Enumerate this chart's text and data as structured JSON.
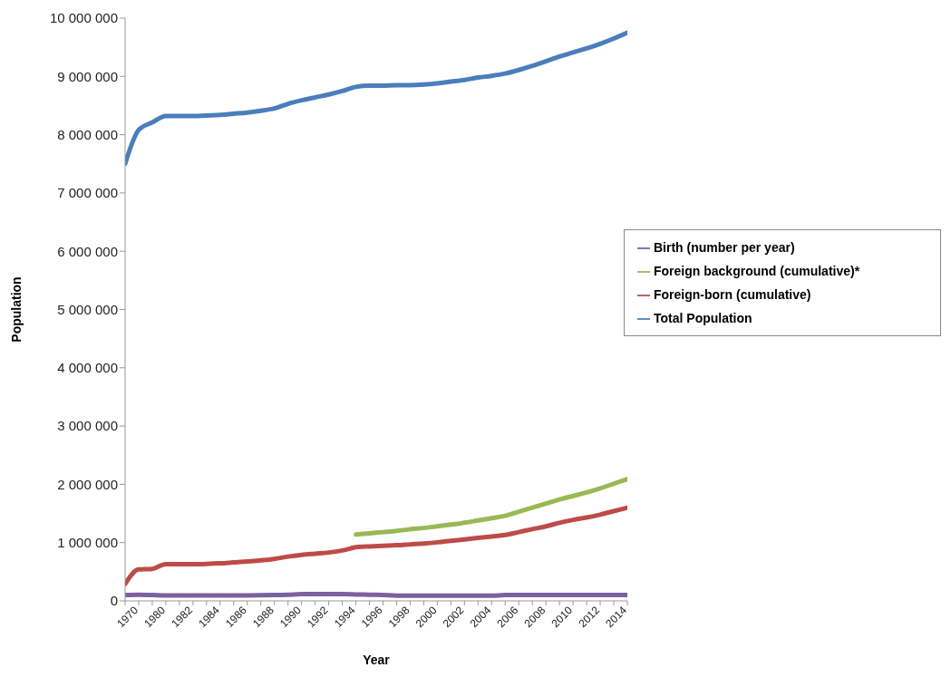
{
  "chart_data": {
    "type": "line",
    "xlabel": "Year",
    "ylabel": "Population",
    "categories": [
      null,
      "1970",
      null,
      "1980",
      null,
      "1982",
      null,
      "1984",
      null,
      "1986",
      null,
      "1988",
      null,
      "1990",
      null,
      "1992",
      null,
      "1994",
      null,
      "1996",
      null,
      "1998",
      null,
      "2000",
      null,
      "2002",
      null,
      "2004",
      null,
      "2006",
      null,
      "2008",
      null,
      "2010",
      null,
      "2012",
      null,
      "2014"
    ],
    "series": [
      {
        "name": "Total Population",
        "color": "#4a7ebb",
        "values": [
          7500000,
          8080000,
          8210000,
          8320000,
          8320000,
          8320000,
          8330000,
          8340000,
          8360000,
          8380000,
          8410000,
          8450000,
          8530000,
          8590000,
          8640000,
          8690000,
          8750000,
          8820000,
          8840000,
          8840000,
          8850000,
          8850000,
          8860000,
          8880000,
          8910000,
          8940000,
          8980000,
          9010000,
          9050000,
          9110000,
          9180000,
          9260000,
          9340000,
          9410000,
          9480000,
          9560000,
          9650000,
          9750000
        ]
      },
      {
        "name": "Foreign-born (cumulative)",
        "color": "#be4b48",
        "values": [
          290000,
          540000,
          550000,
          630000,
          630000,
          630000,
          635000,
          645000,
          660000,
          675000,
          695000,
          720000,
          760000,
          790000,
          810000,
          830000,
          865000,
          920000,
          935000,
          945000,
          955000,
          970000,
          985000,
          1005000,
          1030000,
          1055000,
          1080000,
          1105000,
          1130000,
          1180000,
          1230000,
          1280000,
          1340000,
          1390000,
          1430000,
          1480000,
          1540000,
          1600000
        ]
      },
      {
        "name": "Foreign background (cumulative)*",
        "color": "#98b954",
        "values": [
          null,
          null,
          null,
          null,
          null,
          null,
          null,
          null,
          null,
          null,
          null,
          null,
          null,
          null,
          null,
          null,
          null,
          1140000,
          1160000,
          1180000,
          1200000,
          1230000,
          1250000,
          1280000,
          1310000,
          1340000,
          1380000,
          1420000,
          1460000,
          1530000,
          1600000,
          1670000,
          1740000,
          1800000,
          1860000,
          1930000,
          2010000,
          2090000
        ]
      },
      {
        "name": "Birth (number per year)",
        "color": "#7d60a0",
        "values": [
          100000,
          105000,
          100000,
          95000,
          94000,
          94000,
          94000,
          94000,
          94000,
          94000,
          96000,
          100000,
          105000,
          115000,
          115000,
          115000,
          115000,
          110000,
          105000,
          100000,
          90000,
          90000,
          90000,
          90000,
          90000,
          90000,
          90000,
          90000,
          100000,
          100000,
          100000,
          100000,
          100000,
          100000,
          100000,
          100000,
          100000,
          100000
        ]
      }
    ],
    "ylim": [
      0,
      10000000
    ],
    "yticks": [
      {
        "value": 0,
        "label": "0"
      },
      {
        "value": 1000000,
        "label": "1 000 000"
      },
      {
        "value": 2000000,
        "label": "2 000 000"
      },
      {
        "value": 3000000,
        "label": "3 000 000"
      },
      {
        "value": 4000000,
        "label": "4 000 000"
      },
      {
        "value": 5000000,
        "label": "5 000 000"
      },
      {
        "value": 6000000,
        "label": "6 000 000"
      },
      {
        "value": 7000000,
        "label": "7 000 000"
      },
      {
        "value": 8000000,
        "label": "8 000 000"
      },
      {
        "value": 9000000,
        "label": "9 000 000"
      },
      {
        "value": 10000000,
        "label": "10 000 000"
      }
    ],
    "grid": false,
    "legend": "right",
    "marker": "none",
    "line_style": "solid"
  }
}
